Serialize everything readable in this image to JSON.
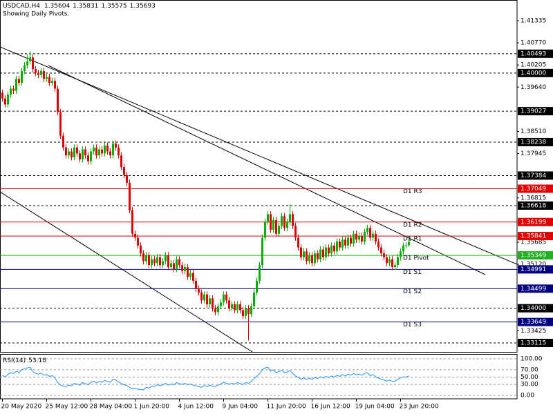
{
  "chart_data": {
    "type": "candlestick",
    "symbol": "USDCAD,H4",
    "subtitle": "Showing Daily Pivots.",
    "bull_color": "#00b000",
    "bear_color": "#e00000",
    "ylim": [
      1.32886,
      1.41863
    ],
    "yticks": [
      1.41335,
      {
        "value": 1.4077,
        "label": "1.40770"
      },
      1.40205,
      {
        "value": 1.3964,
        "label": "1.39640"
      },
      {
        "value": 1.3851,
        "label": "1.38510"
      },
      1.37945,
      1.36815,
      1.35685,
      {
        "value": 1.3512,
        "label": "1.35120"
      },
      1.33425
    ],
    "levels": [
      {
        "price": 1.40493,
        "color": "#000000",
        "dashed": true
      },
      {
        "price": {
          "value": 1.4,
          "label": "1.40000"
        },
        "color": "#000000",
        "dashed": true
      },
      {
        "price": 1.39027,
        "color": "#000000",
        "dashed": true
      },
      {
        "price": 1.38238,
        "color": "#000000",
        "dashed": true
      },
      {
        "price": 1.37384,
        "color": "#000000",
        "dashed": true
      },
      {
        "price": 1.37049,
        "color": "#e00000",
        "dashed": false,
        "name": "D1 R3"
      },
      {
        "price": 1.36618,
        "color": "#000000",
        "dashed": true
      },
      {
        "price": 1.36199,
        "color": "#e00000",
        "dashed": false,
        "name": "D1 R2"
      },
      {
        "price": 1.35841,
        "color": "#e00000",
        "dashed": false,
        "name": "D1 R1"
      },
      {
        "price": 1.35349,
        "color": "#22b022",
        "dashed": false,
        "name": "D1 Pivot"
      },
      {
        "price": 1.34991,
        "color": "#000080",
        "dashed": false,
        "name": "D1 S1"
      },
      {
        "price": 1.34499,
        "color": "#000080",
        "dashed": false,
        "name": "D1 S2"
      },
      {
        "price": {
          "value": 1.34,
          "label": "1.34000"
        },
        "color": "#000000",
        "dashed": true
      },
      {
        "price": 1.33649,
        "color": "#000080",
        "dashed": false,
        "name": "D1 S3"
      },
      {
        "price": 1.33115,
        "color": "#000000",
        "dashed": true
      }
    ],
    "categories": [
      "20 May 2020",
      null,
      null,
      null,
      null,
      null,
      null,
      null,
      null,
      null,
      null,
      null,
      null,
      null,
      null,
      null,
      "25 May 12:00",
      null,
      null,
      null,
      null,
      null,
      null,
      null,
      null,
      null,
      null,
      null,
      null,
      null,
      null,
      null,
      "28 May 04:00",
      null,
      null,
      null,
      null,
      null,
      null,
      null,
      null,
      null,
      null,
      null,
      null,
      null,
      null,
      null,
      "1 Jun 20:00",
      null,
      null,
      null,
      null,
      null,
      null,
      null,
      null,
      null,
      null,
      null,
      null,
      null,
      null,
      null,
      "4 Jun 12:00",
      null,
      null,
      null,
      null,
      null,
      null,
      null,
      null,
      null,
      null,
      null,
      null,
      null,
      null,
      null,
      "9 Jun 04:00",
      null,
      null,
      null,
      null,
      null,
      null,
      null,
      null,
      null,
      null,
      null,
      null,
      null,
      null,
      null,
      "11 Jun 20:00",
      null,
      null,
      null,
      null,
      null,
      null,
      null,
      null,
      null,
      null,
      null,
      null,
      null,
      null,
      null,
      "16 Jun 12:00",
      null,
      null,
      null,
      null,
      null,
      null,
      null,
      null,
      null,
      null,
      null,
      null,
      null,
      null,
      null,
      "19 Jun 04:00",
      null,
      null,
      null,
      null,
      null,
      null,
      null,
      null,
      null,
      null,
      null,
      null,
      null,
      null,
      null,
      "23 Jun 20:00",
      null,
      null,
      null
    ],
    "open": [
      1.395,
      1.3935,
      1.392,
      1.3945,
      1.396,
      1.3955,
      1.3985,
      1.3975,
      1.4005,
      1.402,
      1.403,
      1.404,
      1.401,
      1.4,
      1.3995,
      1.4005,
      1.3985,
      1.399,
      1.3975,
      1.398,
      1.396,
      1.39,
      1.384,
      1.381,
      1.379,
      1.38,
      1.3785,
      1.381,
      1.3795,
      1.378,
      1.3805,
      1.379,
      1.3775,
      1.38,
      1.381,
      1.379,
      1.3805,
      1.3795,
      1.3815,
      1.38,
      1.379,
      1.382,
      1.381,
      1.379,
      1.376,
      1.374,
      1.372,
      1.365,
      1.359,
      1.358,
      1.356,
      1.354,
      1.352,
      1.3535,
      1.351,
      1.3525,
      1.3515,
      1.353,
      1.351,
      1.352,
      1.3535,
      1.3505,
      1.3515,
      1.35,
      1.3525,
      1.351,
      1.3495,
      1.3505,
      1.348,
      1.349,
      1.347,
      1.345,
      1.344,
      1.342,
      1.3435,
      1.341,
      1.3425,
      1.34,
      1.339,
      1.3405,
      1.3415,
      1.3435,
      1.342,
      1.34,
      1.341,
      1.3395,
      1.341,
      1.3395,
      1.338,
      1.34,
      1.3385,
      1.3405,
      1.344,
      1.347,
      1.351,
      1.358,
      1.362,
      1.364,
      1.36,
      1.3625,
      1.359,
      1.361,
      1.3635,
      1.3605,
      1.362,
      1.364,
      1.361,
      1.358,
      1.3555,
      1.353,
      1.3545,
      1.352,
      1.3535,
      1.3515,
      1.354,
      1.3525,
      1.355,
      1.353,
      1.3555,
      1.354,
      1.356,
      1.3545,
      1.357,
      1.3555,
      1.3575,
      1.356,
      1.358,
      1.3565,
      1.359,
      1.3575,
      1.3585,
      1.357,
      1.3595,
      1.3605,
      1.358,
      1.359,
      1.357,
      1.3555,
      1.354,
      1.353,
      1.3515,
      1.3525,
      1.3505,
      1.351,
      1.353,
      1.3545,
      1.356,
      1.35604
    ],
    "high": [
      1.3958,
      1.3943,
      1.3953,
      1.3968,
      1.3968,
      1.3993,
      1.3993,
      1.4013,
      1.4028,
      1.4048,
      1.4055,
      1.4048,
      1.4018,
      1.4008,
      1.4013,
      1.4013,
      1.3998,
      1.3998,
      1.3988,
      1.3988,
      1.3968,
      1.3908,
      1.3848,
      1.3818,
      1.3808,
      1.3808,
      1.3818,
      1.3818,
      1.3803,
      1.3813,
      1.3813,
      1.3798,
      1.3808,
      1.3818,
      1.3818,
      1.3813,
      1.3813,
      1.3823,
      1.3823,
      1.3808,
      1.3828,
      1.3828,
      1.3818,
      1.3798,
      1.3768,
      1.3748,
      1.3728,
      1.3658,
      1.3598,
      1.3588,
      1.3568,
      1.3548,
      1.3543,
      1.3543,
      1.3533,
      1.3533,
      1.3538,
      1.3538,
      1.3528,
      1.3543,
      1.3543,
      1.3523,
      1.3523,
      1.3533,
      1.3533,
      1.3518,
      1.3513,
      1.3513,
      1.3498,
      1.3498,
      1.3478,
      1.3458,
      1.3448,
      1.3443,
      1.3443,
      1.3433,
      1.3433,
      1.3408,
      1.3413,
      1.3423,
      1.3443,
      1.3443,
      1.3428,
      1.3418,
      1.3418,
      1.3418,
      1.3418,
      1.3403,
      1.3408,
      1.3408,
      1.3413,
      1.3448,
      1.3478,
      1.3518,
      1.3588,
      1.3628,
      1.3648,
      1.3648,
      1.3633,
      1.3633,
      1.3618,
      1.3643,
      1.3643,
      1.3628,
      1.3665,
      1.3648,
      1.3618,
      1.3588,
      1.3563,
      1.3553,
      1.3553,
      1.3543,
      1.3543,
      1.3548,
      1.3548,
      1.3558,
      1.3558,
      1.3563,
      1.3563,
      1.3568,
      1.3568,
      1.3578,
      1.3578,
      1.3583,
      1.3583,
      1.3588,
      1.3588,
      1.3598,
      1.3598,
      1.3593,
      1.3593,
      1.3603,
      1.3613,
      1.3613,
      1.3598,
      1.3598,
      1.3578,
      1.3563,
      1.3548,
      1.3538,
      1.3533,
      1.3533,
      1.3518,
      1.3538,
      1.3553,
      1.3568,
      1.3568,
      1.35831
    ],
    "low": [
      1.3927,
      1.3912,
      1.3912,
      1.3937,
      1.3947,
      1.3947,
      1.3967,
      1.3967,
      1.3997,
      1.4012,
      1.4022,
      1.4002,
      1.3992,
      1.3987,
      1.3987,
      1.3977,
      1.3977,
      1.3967,
      1.3967,
      1.3952,
      1.3892,
      1.3832,
      1.3802,
      1.3782,
      1.3782,
      1.3777,
      1.3777,
      1.3787,
      1.3772,
      1.3772,
      1.3782,
      1.3767,
      1.3767,
      1.3792,
      1.3782,
      1.3782,
      1.3787,
      1.3787,
      1.3792,
      1.3782,
      1.3782,
      1.3802,
      1.3782,
      1.3752,
      1.3732,
      1.3712,
      1.3642,
      1.3582,
      1.3572,
      1.3552,
      1.3532,
      1.3512,
      1.3512,
      1.3502,
      1.3502,
      1.3507,
      1.3507,
      1.3502,
      1.3502,
      1.3512,
      1.3497,
      1.3497,
      1.3492,
      1.3492,
      1.3502,
      1.3487,
      1.3487,
      1.3472,
      1.3472,
      1.3462,
      1.3442,
      1.3432,
      1.3412,
      1.3412,
      1.3402,
      1.3402,
      1.3392,
      1.3382,
      1.3382,
      1.3397,
      1.3407,
      1.3412,
      1.3392,
      1.3392,
      1.3387,
      1.3387,
      1.3387,
      1.3372,
      1.3372,
      1.3318,
      1.3377,
      1.3397,
      1.3432,
      1.3462,
      1.3502,
      1.3572,
      1.3612,
      1.3592,
      1.3592,
      1.3582,
      1.3582,
      1.3602,
      1.3597,
      1.3597,
      1.3612,
      1.3602,
      1.3572,
      1.3547,
      1.3522,
      1.3522,
      1.3512,
      1.3512,
      1.3507,
      1.3507,
      1.3517,
      1.3517,
      1.3522,
      1.3522,
      1.3532,
      1.3532,
      1.3537,
      1.3537,
      1.3547,
      1.3547,
      1.3552,
      1.3552,
      1.3557,
      1.3557,
      1.3567,
      1.3567,
      1.3562,
      1.3562,
      1.3587,
      1.3572,
      1.3572,
      1.3562,
      1.3547,
      1.3532,
      1.3522,
      1.3507,
      1.3507,
      1.3497,
      1.3497,
      1.3502,
      1.3522,
      1.3537,
      1.3552,
      1.35575
    ],
    "close": [
      1.3935,
      1.392,
      1.3945,
      1.396,
      1.3955,
      1.3985,
      1.3975,
      1.4005,
      1.402,
      1.403,
      1.404,
      1.401,
      1.4,
      1.3995,
      1.4005,
      1.3985,
      1.399,
      1.3975,
      1.398,
      1.396,
      1.39,
      1.384,
      1.381,
      1.379,
      1.38,
      1.3785,
      1.381,
      1.3795,
      1.378,
      1.3805,
      1.379,
      1.3775,
      1.38,
      1.381,
      1.379,
      1.3805,
      1.3795,
      1.3815,
      1.38,
      1.379,
      1.382,
      1.381,
      1.379,
      1.376,
      1.374,
      1.372,
      1.365,
      1.359,
      1.358,
      1.356,
      1.354,
      1.352,
      1.3535,
      1.351,
      1.3525,
      1.3515,
      1.353,
      1.351,
      1.352,
      1.3535,
      1.3505,
      1.3515,
      1.35,
      1.3525,
      1.351,
      1.3495,
      1.3505,
      1.348,
      1.349,
      1.347,
      1.345,
      1.344,
      1.342,
      1.3435,
      1.341,
      1.3425,
      1.34,
      1.339,
      1.3405,
      1.3415,
      1.3435,
      1.342,
      1.34,
      1.341,
      1.3395,
      1.341,
      1.3395,
      1.338,
      1.34,
      1.3385,
      1.3405,
      1.344,
      1.347,
      1.351,
      1.358,
      1.362,
      1.364,
      1.36,
      1.3625,
      1.359,
      1.361,
      1.3635,
      1.3605,
      1.362,
      1.364,
      1.361,
      1.358,
      1.3555,
      1.353,
      1.3545,
      1.352,
      1.3535,
      1.3515,
      1.354,
      1.3525,
      1.355,
      1.353,
      1.3555,
      1.354,
      1.356,
      1.3545,
      1.357,
      1.3555,
      1.3575,
      1.356,
      1.358,
      1.3565,
      1.359,
      1.3575,
      1.3585,
      1.357,
      1.3595,
      1.3605,
      1.358,
      1.359,
      1.357,
      1.3555,
      1.354,
      1.353,
      1.3515,
      1.3525,
      1.3505,
      1.351,
      1.353,
      1.3545,
      1.356,
      1.35604,
      1.35693
    ],
    "rsi": {
      "title": "RSI(14)",
      "color": "#1e90ff",
      "ylim": [
        0,
        100
      ],
      "yticks": [
        {
          "value": 100,
          "label": "100.00"
        },
        {
          "value": 70,
          "label": "70.00"
        },
        {
          "value": 50,
          "label": "50.00"
        },
        {
          "value": 30,
          "label": "30.00"
        },
        {
          "value": 0,
          "label": "0.00"
        }
      ],
      "values": [
        55,
        50,
        58,
        62,
        60,
        66,
        63,
        70,
        73,
        75,
        77,
        65,
        60,
        58,
        61,
        55,
        57,
        52,
        54,
        48,
        35,
        28,
        25,
        24,
        28,
        26,
        33,
        31,
        28,
        35,
        32,
        29,
        36,
        39,
        34,
        38,
        36,
        41,
        38,
        36,
        44,
        42,
        37,
        32,
        29,
        27,
        22,
        18,
        18,
        17,
        16,
        15,
        22,
        20,
        25,
        24,
        29,
        26,
        29,
        33,
        28,
        31,
        29,
        35,
        32,
        30,
        33,
        29,
        31,
        28,
        26,
        24,
        22,
        27,
        24,
        28,
        25,
        24,
        28,
        31,
        36,
        33,
        30,
        33,
        31,
        35,
        32,
        30,
        35,
        33,
        38,
        46,
        52,
        60,
        70,
        75,
        77,
        66,
        70,
        62,
        65,
        69,
        62,
        64,
        68,
        60,
        53,
        49,
        44,
        48,
        43,
        47,
        44,
        49,
        46,
        51,
        47,
        52,
        49,
        53,
        50,
        55,
        52,
        57,
        53,
        58,
        55,
        60,
        56,
        58,
        55,
        60,
        62,
        54,
        57,
        51,
        47,
        44,
        42,
        39,
        42,
        38,
        39,
        44,
        48,
        51,
        50,
        53.18
      ]
    }
  }
}
